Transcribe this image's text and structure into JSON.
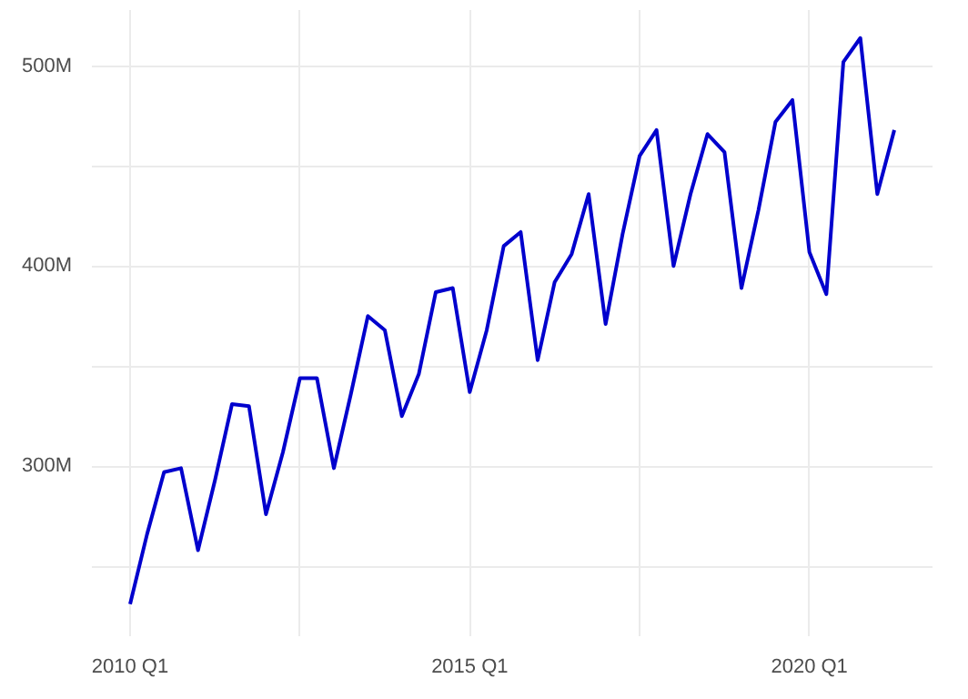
{
  "chart_data": {
    "type": "line",
    "categories": [
      "2010 Q1",
      null,
      null,
      null,
      null,
      null,
      null,
      null,
      null,
      null,
      null,
      null,
      null,
      null,
      null,
      null,
      null,
      null,
      null,
      null,
      "2015 Q1",
      null,
      null,
      null,
      null,
      null,
      null,
      null,
      null,
      null,
      null,
      null,
      null,
      null,
      null,
      null,
      null,
      null,
      null,
      null,
      "2020 Q1",
      null,
      null,
      null,
      null,
      null
    ],
    "series": [
      {
        "color": "#0000cd",
        "values": [
          231,
          266,
          297,
          299,
          258,
          293,
          331,
          330,
          276,
          307,
          344,
          344,
          299,
          336,
          375,
          368,
          325,
          346,
          387,
          389,
          337,
          368,
          410,
          417,
          353,
          392,
          406,
          436,
          371,
          416,
          455,
          468,
          400,
          436,
          466,
          457,
          389,
          428,
          472,
          483,
          407,
          386,
          502,
          514,
          436,
          468
        ]
      }
    ],
    "ylim": [
      215,
      528
    ],
    "yticks": [
      {
        "value": 250,
        "label": null
      },
      {
        "value": 300,
        "label": "300M"
      },
      {
        "value": 350,
        "label": null
      },
      {
        "value": 400,
        "label": "400M"
      },
      {
        "value": 450,
        "label": null
      },
      {
        "value": 500,
        "label": "500M"
      }
    ],
    "grid": true,
    "line_style": "solid"
  }
}
